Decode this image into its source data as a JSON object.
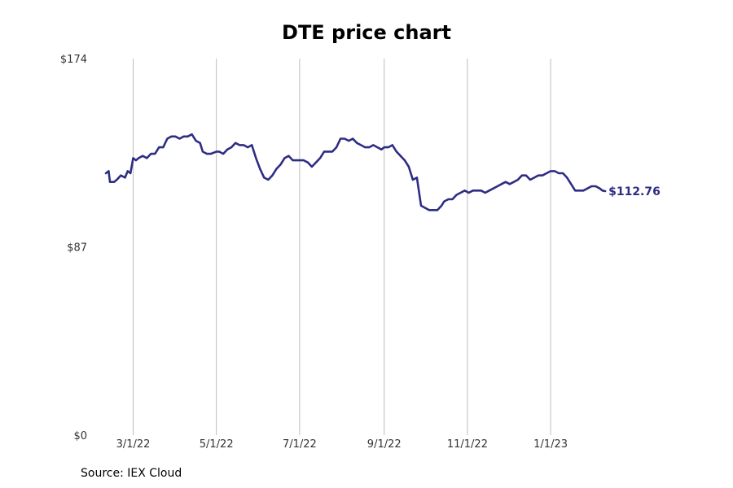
{
  "chart_data": {
    "type": "line",
    "title": "DTE price chart",
    "xlabel": "",
    "ylabel": "",
    "x_ticks": [
      "3/1/22",
      "5/1/22",
      "7/1/22",
      "9/1/22",
      "11/1/22",
      "1/1/23"
    ],
    "x_range": [
      "2022-02-09",
      "2023-03-10"
    ],
    "y_ticks": [
      {
        "value": 0,
        "label": "$0"
      },
      {
        "value": 87,
        "label": "$87"
      },
      {
        "value": 174,
        "label": "$174"
      }
    ],
    "ylim": [
      0,
      174
    ],
    "grid": "vertical",
    "line_color": "#2e2d84",
    "end_label": "$112.76",
    "series": [
      {
        "x": [
          "2022-02-09",
          "2022-02-11",
          "2022-02-12",
          "2022-02-15",
          "2022-02-17",
          "2022-02-20",
          "2022-02-23",
          "2022-02-25",
          "2022-02-27",
          "2022-03-01",
          "2022-03-03",
          "2022-03-05",
          "2022-03-08",
          "2022-03-11",
          "2022-03-14",
          "2022-03-17",
          "2022-03-20",
          "2022-03-23",
          "2022-03-26",
          "2022-03-29",
          "2022-04-01",
          "2022-04-04",
          "2022-04-07",
          "2022-04-10",
          "2022-04-13",
          "2022-04-16",
          "2022-04-19",
          "2022-04-21",
          "2022-04-24",
          "2022-04-27",
          "2022-05-01",
          "2022-05-03",
          "2022-05-06",
          "2022-05-09",
          "2022-05-12",
          "2022-05-15",
          "2022-05-18",
          "2022-05-21",
          "2022-05-24",
          "2022-05-27",
          "2022-05-30",
          "2022-06-02",
          "2022-06-05",
          "2022-06-08",
          "2022-06-11",
          "2022-06-14",
          "2022-06-17",
          "2022-06-20",
          "2022-06-23",
          "2022-06-26",
          "2022-07-01",
          "2022-07-04",
          "2022-07-07",
          "2022-07-10",
          "2022-07-13",
          "2022-07-16",
          "2022-07-19",
          "2022-07-22",
          "2022-07-25",
          "2022-07-28",
          "2022-07-31",
          "2022-08-03",
          "2022-08-06",
          "2022-08-09",
          "2022-08-12",
          "2022-08-15",
          "2022-08-18",
          "2022-08-21",
          "2022-08-24",
          "2022-08-27",
          "2022-08-30",
          "2022-09-01",
          "2022-09-04",
          "2022-09-07",
          "2022-09-10",
          "2022-09-13",
          "2022-09-16",
          "2022-09-19",
          "2022-09-22",
          "2022-09-25",
          "2022-09-28",
          "2022-10-01",
          "2022-10-04",
          "2022-10-07",
          "2022-10-10",
          "2022-10-13",
          "2022-10-15",
          "2022-10-18",
          "2022-10-21",
          "2022-10-24",
          "2022-10-27",
          "2022-10-30",
          "2022-11-02",
          "2022-11-05",
          "2022-11-08",
          "2022-11-11",
          "2022-11-14",
          "2022-11-17",
          "2022-11-20",
          "2022-11-23",
          "2022-11-26",
          "2022-11-29",
          "2022-12-02",
          "2022-12-05",
          "2022-12-08",
          "2022-12-11",
          "2022-12-14",
          "2022-12-17",
          "2022-12-20",
          "2022-12-23",
          "2022-12-26",
          "2022-12-29",
          "2023-01-01",
          "2023-01-04",
          "2023-01-07",
          "2023-01-10",
          "2023-01-13",
          "2023-01-16",
          "2023-01-19",
          "2023-01-22",
          "2023-01-25",
          "2023-01-28",
          "2023-01-31",
          "2023-02-03",
          "2023-02-06",
          "2023-02-08",
          "2023-02-10"
        ],
        "values": [
          121,
          122,
          117,
          117,
          118,
          120,
          119,
          122,
          121,
          128,
          127,
          128,
          129,
          128,
          130,
          130,
          133,
          133,
          137,
          138,
          138,
          137,
          138,
          138,
          139,
          136,
          135,
          131,
          130,
          130,
          131,
          131,
          130,
          132,
          133,
          135,
          134,
          134,
          133,
          134,
          128,
          123,
          119,
          118,
          120,
          123,
          125,
          128,
          129,
          127,
          127,
          127,
          126,
          124,
          126,
          128,
          131,
          131,
          131,
          133,
          137,
          137,
          136,
          137,
          135,
          134,
          133,
          133,
          134,
          133,
          132,
          133,
          133,
          134,
          131,
          129,
          127,
          124,
          118,
          119,
          106,
          105,
          104,
          104,
          104,
          106,
          108,
          109,
          109,
          111,
          112,
          113,
          112,
          113,
          113,
          113,
          112,
          113,
          114,
          115,
          116,
          117,
          116,
          117,
          118,
          120,
          120,
          118,
          119,
          120,
          120,
          121,
          122,
          122,
          121,
          121,
          119,
          116,
          113,
          113,
          113,
          114,
          115,
          115,
          114,
          113,
          112.76
        ]
      }
    ]
  },
  "source_note": "Source: IEX Cloud"
}
